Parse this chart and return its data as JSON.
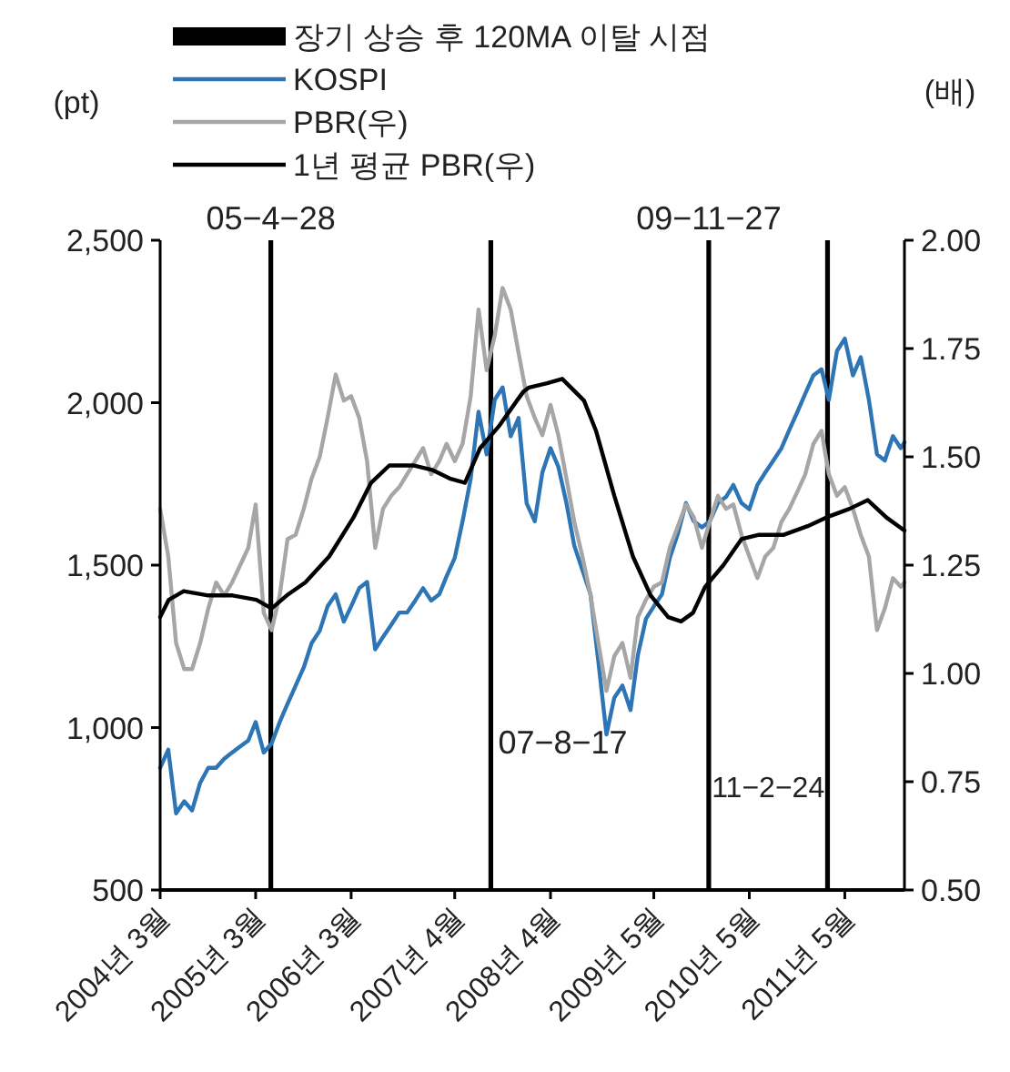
{
  "chart_data": {
    "type": "line",
    "x": [
      "2004-03",
      "2004-04",
      "2004-05",
      "2004-06",
      "2004-07",
      "2004-08",
      "2004-09",
      "2004-10",
      "2004-11",
      "2004-12",
      "2005-01",
      "2005-02",
      "2005-03",
      "2005-04",
      "2005-05",
      "2005-06",
      "2005-07",
      "2005-08",
      "2005-09",
      "2005-10",
      "2005-11",
      "2005-12",
      "2006-01",
      "2006-02",
      "2006-03",
      "2006-04",
      "2006-05",
      "2006-06",
      "2006-07",
      "2006-08",
      "2006-09",
      "2006-10",
      "2006-11",
      "2006-12",
      "2007-01",
      "2007-02",
      "2007-03",
      "2007-04",
      "2007-05",
      "2007-06",
      "2007-07",
      "2007-08",
      "2007-09",
      "2007-10",
      "2007-11",
      "2007-12",
      "2008-01",
      "2008-02",
      "2008-03",
      "2008-04",
      "2008-05",
      "2008-06",
      "2008-07",
      "2008-08",
      "2008-09",
      "2008-10",
      "2008-11",
      "2008-12",
      "2009-01",
      "2009-02",
      "2009-03",
      "2009-04",
      "2009-05",
      "2009-06",
      "2009-07",
      "2009-08",
      "2009-09",
      "2009-10",
      "2009-11",
      "2009-12",
      "2010-01",
      "2010-02",
      "2010-03",
      "2010-04",
      "2010-05",
      "2010-06",
      "2010-07",
      "2010-08",
      "2010-09",
      "2010-10",
      "2010-11",
      "2010-12",
      "2011-01",
      "2011-02",
      "2011-03",
      "2011-04",
      "2011-05",
      "2011-06",
      "2011-07",
      "2011-08",
      "2011-09",
      "2011-10",
      "2011-11",
      "2011-12",
      "2011-12-15"
    ],
    "series": [
      {
        "name": "장기 상승 후 120MA 이탈 시점",
        "type": "bar",
        "color": "#000000",
        "x": [
          "2005-04-28",
          "2007-08-17",
          "2009-11-27",
          "2011-02-24"
        ],
        "values": [
          2500,
          2500,
          2500,
          2500
        ]
      },
      {
        "name": "KOSPI",
        "color": "#2e75b6",
        "values": [
          876,
          932,
          736,
          773,
          745,
          830,
          876,
          876,
          904,
          923,
          942,
          960,
          1017,
          923,
          951,
          1017,
          1073,
          1129,
          1185,
          1260,
          1298,
          1373,
          1410,
          1326,
          1373,
          1429,
          1448,
          1241,
          1279,
          1316,
          1354,
          1354,
          1391,
          1429,
          1391,
          1410,
          1466,
          1522,
          1635,
          1766,
          1972,
          1841,
          2009,
          2047,
          1897,
          1953,
          1690,
          1635,
          1785,
          1860,
          1803,
          1691,
          1560,
          1485,
          1410,
          1204,
          979,
          1092,
          1129,
          1054,
          1223,
          1335,
          1373,
          1410,
          1522,
          1597,
          1691,
          1635,
          1616,
          1635,
          1691,
          1710,
          1747,
          1691,
          1672,
          1747,
          1785,
          1822,
          1860,
          1916,
          1972,
          2028,
          2084,
          2103,
          2009,
          2159,
          2197,
          2084,
          2140,
          2009,
          1841,
          1822,
          1897,
          1860,
          1878
        ]
      },
      {
        "name": "PBR(우)",
        "axis": "y2",
        "color": "#a6a6a6",
        "values": [
          1.38,
          1.27,
          1.07,
          1.01,
          1.01,
          1.07,
          1.15,
          1.21,
          1.18,
          1.21,
          1.25,
          1.29,
          1.39,
          1.14,
          1.1,
          1.18,
          1.31,
          1.32,
          1.38,
          1.45,
          1.5,
          1.59,
          1.69,
          1.63,
          1.64,
          1.59,
          1.49,
          1.29,
          1.38,
          1.41,
          1.43,
          1.46,
          1.49,
          1.52,
          1.46,
          1.49,
          1.53,
          1.49,
          1.53,
          1.64,
          1.84,
          1.7,
          1.78,
          1.89,
          1.84,
          1.74,
          1.64,
          1.59,
          1.55,
          1.62,
          1.55,
          1.45,
          1.35,
          1.27,
          1.18,
          1.07,
          0.96,
          1.04,
          1.07,
          0.99,
          1.13,
          1.17,
          1.2,
          1.21,
          1.29,
          1.34,
          1.39,
          1.36,
          1.29,
          1.35,
          1.41,
          1.38,
          1.39,
          1.32,
          1.27,
          1.22,
          1.27,
          1.29,
          1.35,
          1.38,
          1.42,
          1.46,
          1.53,
          1.56,
          1.46,
          1.41,
          1.43,
          1.38,
          1.32,
          1.27,
          1.1,
          1.15,
          1.22,
          1.2,
          1.21
        ]
      },
      {
        "name": "1년 평균 PBR(우)",
        "axis": "y2",
        "color": "#000000",
        "x": [
          "2004-03-01",
          "2004-04-03",
          "2004-05-30",
          "2004-09-01",
          "2004-12-03",
          "2005-03-04",
          "2005-05-01",
          "2005-06-28",
          "2005-09-07",
          "2005-12-07",
          "2006-03-10",
          "2006-05-16",
          "2006-07-25",
          "2006-10-28",
          "2007-01-04",
          "2007-03-13",
          "2007-05-10",
          "2007-07-07",
          "2007-09-16",
          "2007-11-25",
          "2007-12-19",
          "2008-01-10",
          "2008-03-19",
          "2008-05-16",
          "2008-08-07",
          "2008-09-22",
          "2008-12-01",
          "2009-02-10",
          "2009-04-19",
          "2009-06-25",
          "2009-08-13",
          "2009-09-28",
          "2009-11-13",
          "2010-01-22",
          "2010-04-01",
          "2010-06-07",
          "2010-09-10",
          "2010-12-10",
          "2011-02-19",
          "2011-05-19",
          "2011-07-28",
          "2011-10-07",
          "2011-12-15"
        ],
        "values": [
          1.13,
          1.17,
          1.19,
          1.18,
          1.18,
          1.17,
          1.15,
          1.18,
          1.21,
          1.27,
          1.36,
          1.44,
          1.48,
          1.48,
          1.47,
          1.45,
          1.44,
          1.52,
          1.57,
          1.63,
          1.65,
          1.66,
          1.67,
          1.68,
          1.63,
          1.56,
          1.41,
          1.27,
          1.18,
          1.13,
          1.12,
          1.14,
          1.2,
          1.25,
          1.31,
          1.32,
          1.32,
          1.34,
          1.36,
          1.38,
          1.4,
          1.36,
          1.33
        ]
      }
    ],
    "xlim": [
      "2004-03-01",
      "2011-12-15"
    ],
    "xticks": [
      {
        "value": "2004-03-01",
        "label": "2004년 3월"
      },
      {
        "value": "2005-03-01",
        "label": "2005년 3월"
      },
      {
        "value": "2006-03-01",
        "label": "2006년 3월"
      },
      {
        "value": "2007-04-01",
        "label": "2007년 4월"
      },
      {
        "value": "2008-04-01",
        "label": "2008년 4월"
      },
      {
        "value": "2009-05-01",
        "label": "2009년 5월"
      },
      {
        "value": "2010-05-01",
        "label": "2010년 5월"
      },
      {
        "value": "2011-05-01",
        "label": "2011년 5월"
      }
    ],
    "ylim": [
      500,
      2500
    ],
    "yticks": [
      {
        "value": 500,
        "label": "500"
      },
      {
        "value": 1000,
        "label": "1,000"
      },
      {
        "value": 1500,
        "label": "1,500"
      },
      {
        "value": 2000,
        "label": "2,000"
      },
      {
        "value": 2500,
        "label": "2,500"
      }
    ],
    "y2lim": [
      0.5,
      2.0
    ],
    "y2ticks": [
      {
        "value": 0.5,
        "label": "0.50"
      },
      {
        "value": 0.75,
        "label": "0.75"
      },
      {
        "value": 1.0,
        "label": "1.00"
      },
      {
        "value": 1.25,
        "label": "1.25"
      },
      {
        "value": 1.5,
        "label": "1.50"
      },
      {
        "value": 1.75,
        "label": "1.75"
      },
      {
        "value": 2.0,
        "label": "2.00"
      }
    ],
    "ylabel": "(pt)",
    "y2label": "(배)",
    "annotations": [
      "05−4−28",
      "07−8−17",
      "09−11−27",
      "11−2−24"
    ],
    "legend": "top"
  }
}
